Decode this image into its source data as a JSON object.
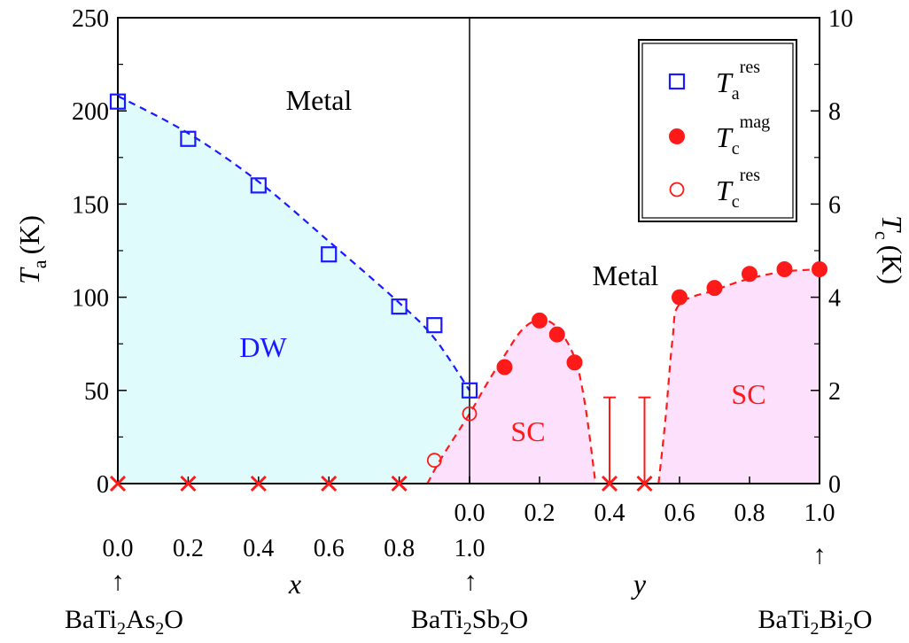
{
  "chart_data": {
    "type": "scatter",
    "title": "",
    "left_axis": {
      "label_main": "T",
      "label_sub": "a",
      "label_unit": "(K)",
      "ylim": [
        0,
        250
      ],
      "ticks": [
        "0",
        "50",
        "100",
        "150",
        "200",
        "250"
      ]
    },
    "right_axis": {
      "label_main": "T",
      "label_sub": "c",
      "label_unit": "(K)",
      "ylim": [
        0,
        10
      ],
      "ticks": [
        "0",
        "2",
        "4",
        "6",
        "8",
        "10"
      ]
    },
    "x_left": {
      "variable": "x",
      "ticks": [
        "0.0",
        "0.2",
        "0.4",
        "0.6",
        "0.8",
        "1.0"
      ]
    },
    "y_right": {
      "variable": "y",
      "ticks": [
        "0.0",
        "0.2",
        "0.4",
        "0.6",
        "0.8",
        "1.0"
      ]
    },
    "compounds": {
      "left": {
        "base": "BaTi",
        "s1": "2",
        "mid": "As",
        "s2": "2",
        "end": "O"
      },
      "middle": {
        "base": "BaTi",
        "s1": "2",
        "mid": "Sb",
        "s2": "2",
        "end": "O"
      },
      "right": {
        "base": "BaTi",
        "s1": "2",
        "mid": "Bi",
        "s2": "2",
        "end": "O"
      }
    },
    "arrow_symbol": "↑",
    "regions": {
      "metal_left": "Metal",
      "metal_right": "Metal",
      "dw": "DW",
      "sc_left": "SC",
      "sc_right": "SC"
    },
    "legend": [
      {
        "main": "T",
        "sub": "a",
        "sup": "res",
        "marker": "open-square",
        "color": "#1a1aff"
      },
      {
        "main": "T",
        "sub": "c",
        "sup": "mag",
        "marker": "filled-circle",
        "color": "#ff1a1a"
      },
      {
        "main": "T",
        "sub": "c",
        "sup": "res",
        "marker": "open-circle",
        "color": "#ff1a1a"
      }
    ],
    "series": [
      {
        "name": "Ta_res",
        "axis": "left",
        "marker": "open-square",
        "color": "#1a1aff",
        "points": [
          {
            "side": "x",
            "t": 0.0,
            "v": 205
          },
          {
            "side": "x",
            "t": 0.2,
            "v": 185
          },
          {
            "side": "x",
            "t": 0.4,
            "v": 160
          },
          {
            "side": "x",
            "t": 0.6,
            "v": 123
          },
          {
            "side": "x",
            "t": 0.8,
            "v": 95
          },
          {
            "side": "x",
            "t": 0.9,
            "v": 85
          },
          {
            "side": "x",
            "t": 1.0,
            "v": 50
          }
        ]
      },
      {
        "name": "Tc_mag",
        "axis": "right",
        "marker": "filled-circle",
        "color": "#ff1a1a",
        "points": [
          {
            "side": "y",
            "t": 0.1,
            "v": 2.5
          },
          {
            "side": "y",
            "t": 0.2,
            "v": 3.5
          },
          {
            "side": "y",
            "t": 0.25,
            "v": 3.2
          },
          {
            "side": "y",
            "t": 0.3,
            "v": 2.6
          },
          {
            "side": "y",
            "t": 0.6,
            "v": 4.0
          },
          {
            "side": "y",
            "t": 0.7,
            "v": 4.2
          },
          {
            "side": "y",
            "t": 0.8,
            "v": 4.5
          },
          {
            "side": "y",
            "t": 0.9,
            "v": 4.6
          },
          {
            "side": "y",
            "t": 1.0,
            "v": 4.6
          }
        ]
      },
      {
        "name": "Tc_res",
        "axis": "right",
        "marker": "open-circle",
        "color": "#ff1a1a",
        "points": [
          {
            "side": "x",
            "t": 0.9,
            "v": 0.5
          },
          {
            "side": "y",
            "t": 0.0,
            "v": 1.5
          }
        ]
      },
      {
        "name": "no_transition",
        "axis": "left",
        "marker": "cross",
        "color": "#ff1a1a",
        "points": [
          {
            "side": "x",
            "t": 0.0,
            "v": 0
          },
          {
            "side": "x",
            "t": 0.2,
            "v": 0
          },
          {
            "side": "x",
            "t": 0.4,
            "v": 0
          },
          {
            "side": "x",
            "t": 0.6,
            "v": 0
          },
          {
            "side": "x",
            "t": 0.8,
            "v": 0
          },
          {
            "side": "y",
            "t": 0.4,
            "v": 0
          },
          {
            "side": "y",
            "t": 0.5,
            "v": 0
          }
        ]
      }
    ],
    "upper_limits": [
      {
        "side": "y",
        "t": 0.4,
        "v_right": 1.85
      },
      {
        "side": "y",
        "t": 0.5,
        "v_right": 1.85
      }
    ],
    "curves": {
      "dw_boundary": [
        {
          "side": "x",
          "t": 0.0,
          "v": 208
        },
        {
          "side": "x",
          "t": 0.2,
          "v": 188
        },
        {
          "side": "x",
          "t": 0.4,
          "v": 162
        },
        {
          "side": "x",
          "t": 0.6,
          "v": 130
        },
        {
          "side": "x",
          "t": 0.8,
          "v": 97
        },
        {
          "side": "x",
          "t": 0.9,
          "v": 78
        },
        {
          "side": "y",
          "t": 0.0,
          "v": 50
        }
      ],
      "sc_dome_left": [
        {
          "side": "x",
          "t": 0.88,
          "v_right": 0
        },
        {
          "side": "x",
          "t": 0.92,
          "v_right": 0.55
        },
        {
          "side": "y",
          "t": 0.0,
          "v_right": 1.5
        },
        {
          "side": "y",
          "t": 0.05,
          "v_right": 2.15
        },
        {
          "side": "y",
          "t": 0.1,
          "v_right": 2.75
        },
        {
          "side": "y",
          "t": 0.15,
          "v_right": 3.3
        },
        {
          "side": "y",
          "t": 0.2,
          "v_right": 3.52
        },
        {
          "side": "y",
          "t": 0.25,
          "v_right": 3.35
        },
        {
          "side": "y",
          "t": 0.3,
          "v_right": 2.7
        },
        {
          "side": "y",
          "t": 0.33,
          "v_right": 1.7
        },
        {
          "side": "y",
          "t": 0.36,
          "v_right": 0
        }
      ],
      "sc_dome_right": [
        {
          "side": "y",
          "t": 0.54,
          "v_right": 0
        },
        {
          "side": "y",
          "t": 0.56,
          "v_right": 1.4
        },
        {
          "side": "y",
          "t": 0.58,
          "v_right": 3.1
        },
        {
          "side": "y",
          "t": 0.6,
          "v_right": 3.85
        },
        {
          "side": "y",
          "t": 0.7,
          "v_right": 4.15
        },
        {
          "side": "y",
          "t": 0.8,
          "v_right": 4.4
        },
        {
          "side": "y",
          "t": 0.9,
          "v_right": 4.55
        },
        {
          "side": "y",
          "t": 1.0,
          "v_right": 4.6
        }
      ]
    },
    "colors": {
      "dw_fill": "#e0fbfb",
      "sc_fill": "#fde0fb",
      "blue": "#1a1aff",
      "red": "#ff1a1a"
    }
  }
}
